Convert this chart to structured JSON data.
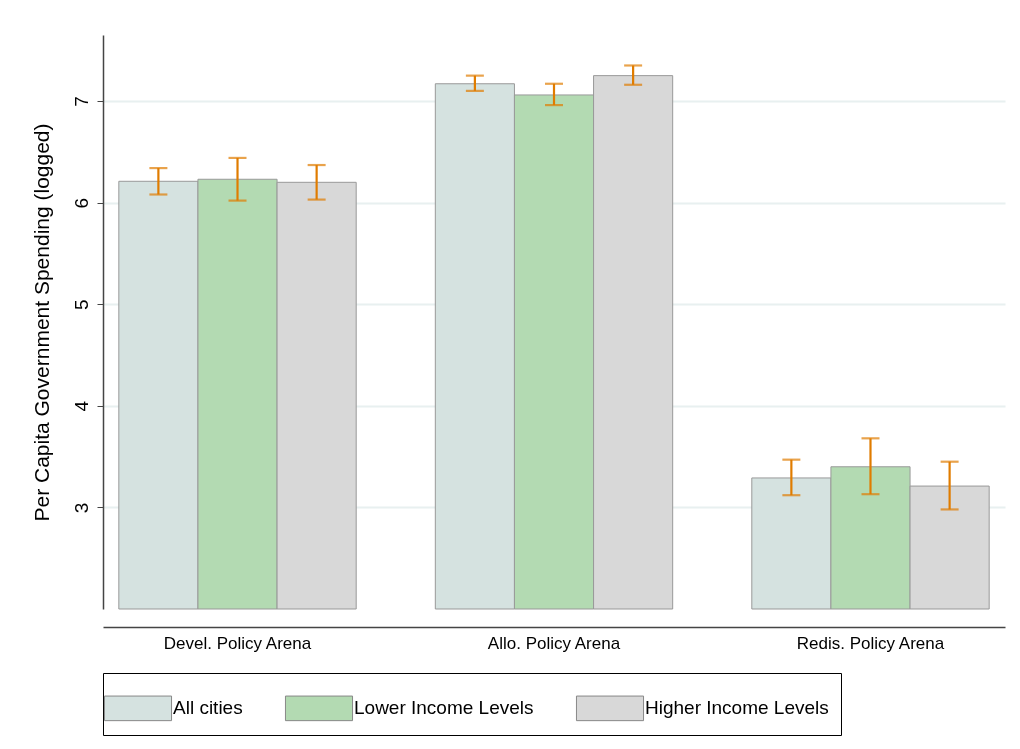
{
  "chart_data": {
    "type": "bar",
    "ylabel": "Per Capita Government Spending (logged)",
    "categories": [
      "Devel. Policy Arena",
      "Allo. Policy Arena",
      "Redis. Policy Arena"
    ],
    "series": [
      {
        "name": "All cities",
        "color": "#d5e2e0",
        "values": [
          6.21,
          7.17,
          3.29
        ],
        "errors": [
          [
            6.08,
            6.34
          ],
          [
            7.1,
            7.25
          ],
          [
            3.12,
            3.47
          ]
        ]
      },
      {
        "name": "Lower Income Levels",
        "color": "#b3dab2",
        "values": [
          6.23,
          7.06,
          3.4
        ],
        "errors": [
          [
            6.02,
            6.44
          ],
          [
            6.96,
            7.17
          ],
          [
            3.13,
            3.68
          ]
        ]
      },
      {
        "name": "Higher Income Levels",
        "color": "#d8d8d8",
        "values": [
          6.2,
          7.25,
          3.21
        ],
        "errors": [
          [
            6.03,
            6.37
          ],
          [
            7.16,
            7.35
          ],
          [
            2.98,
            3.45
          ]
        ]
      }
    ],
    "ylim": [
      2,
      7.65
    ],
    "yticks": [
      3,
      4,
      5,
      6,
      7
    ],
    "grid": "y",
    "legend": "bottom"
  }
}
